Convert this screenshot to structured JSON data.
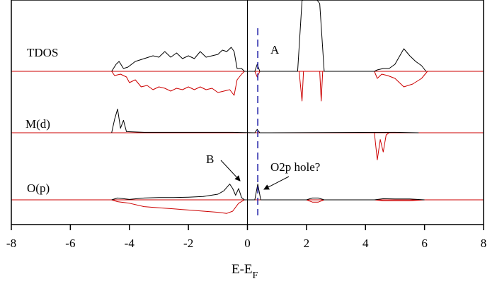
{
  "chart_data": {
    "type": "line",
    "xlabel": "E-E",
    "xlabel_subscript": "F",
    "xlim": [
      -8,
      8
    ],
    "x_ticks": [
      -8,
      -6,
      -4,
      -2,
      0,
      2,
      4,
      6,
      8
    ],
    "grid": false,
    "legend": "none",
    "fermi_level": 0,
    "dashed_marker": 0.35,
    "panels": [
      {
        "name": "TDOS",
        "upper_color": "#000000",
        "lower_color": "#cc0000",
        "upper": [
          [
            -4.6,
            0
          ],
          [
            -4.45,
            0.25
          ],
          [
            -4.35,
            0.35
          ],
          [
            -4.2,
            0.1
          ],
          [
            -4.05,
            0.15
          ],
          [
            -3.8,
            0.35
          ],
          [
            -3.5,
            0.45
          ],
          [
            -3.2,
            0.55
          ],
          [
            -3.0,
            0.5
          ],
          [
            -2.8,
            0.7
          ],
          [
            -2.6,
            0.5
          ],
          [
            -2.4,
            0.65
          ],
          [
            -2.2,
            0.45
          ],
          [
            -2.0,
            0.55
          ],
          [
            -1.8,
            0.45
          ],
          [
            -1.6,
            0.7
          ],
          [
            -1.4,
            0.5
          ],
          [
            -1.2,
            0.55
          ],
          [
            -1.0,
            0.6
          ],
          [
            -0.85,
            0.75
          ],
          [
            -0.7,
            0.7
          ],
          [
            -0.55,
            0.85
          ],
          [
            -0.45,
            0.7
          ],
          [
            -0.35,
            0.1
          ],
          [
            -0.2,
            0.1
          ],
          [
            -0.1,
            0
          ],
          [
            0.25,
            0
          ],
          [
            0.33,
            0.25
          ],
          [
            0.42,
            0
          ],
          [
            1.7,
            0
          ],
          [
            1.85,
            2.5
          ],
          [
            2.0,
            2.6
          ],
          [
            2.3,
            2.6
          ],
          [
            2.45,
            2.4
          ],
          [
            2.6,
            0
          ],
          [
            4.3,
            0
          ],
          [
            4.4,
            0.05
          ],
          [
            4.6,
            0.1
          ],
          [
            4.8,
            0.1
          ],
          [
            5.0,
            0.25
          ],
          [
            5.3,
            0.8
          ],
          [
            5.5,
            0.55
          ],
          [
            5.7,
            0.35
          ],
          [
            5.9,
            0.2
          ],
          [
            6.05,
            0
          ]
        ],
        "lower": [
          [
            -4.6,
            0
          ],
          [
            -4.5,
            -0.15
          ],
          [
            -4.3,
            -0.1
          ],
          [
            -4.1,
            -0.2
          ],
          [
            -4.0,
            -0.4
          ],
          [
            -3.8,
            -0.3
          ],
          [
            -3.6,
            -0.55
          ],
          [
            -3.4,
            -0.5
          ],
          [
            -3.2,
            -0.65
          ],
          [
            -3.0,
            -0.55
          ],
          [
            -2.8,
            -0.6
          ],
          [
            -2.6,
            -0.7
          ],
          [
            -2.4,
            -0.6
          ],
          [
            -2.2,
            -0.65
          ],
          [
            -2.0,
            -0.55
          ],
          [
            -1.8,
            -0.65
          ],
          [
            -1.6,
            -0.55
          ],
          [
            -1.4,
            -0.65
          ],
          [
            -1.2,
            -0.6
          ],
          [
            -1.0,
            -0.75
          ],
          [
            -0.8,
            -0.7
          ],
          [
            -0.6,
            -0.65
          ],
          [
            -0.45,
            -0.85
          ],
          [
            -0.35,
            -0.3
          ],
          [
            -0.2,
            -0.1
          ],
          [
            -0.1,
            0
          ],
          [
            0.25,
            0
          ],
          [
            0.33,
            -0.2
          ],
          [
            0.42,
            0
          ],
          [
            1.75,
            0
          ],
          [
            1.85,
            -1.05
          ],
          [
            1.9,
            0
          ],
          [
            2.45,
            0
          ],
          [
            2.5,
            -1.05
          ],
          [
            2.55,
            0
          ],
          [
            4.3,
            0
          ],
          [
            4.4,
            -0.25
          ],
          [
            4.55,
            -0.1
          ],
          [
            4.75,
            -0.15
          ],
          [
            5.0,
            -0.25
          ],
          [
            5.3,
            -0.55
          ],
          [
            5.6,
            -0.45
          ],
          [
            5.9,
            -0.25
          ],
          [
            6.1,
            0
          ]
        ]
      },
      {
        "name": "M(d)",
        "upper_color": "#000000",
        "lower_color": "#cc0000",
        "upper": [
          [
            -4.6,
            0
          ],
          [
            -4.5,
            0.6
          ],
          [
            -4.4,
            1.05
          ],
          [
            -4.3,
            0.2
          ],
          [
            -4.2,
            0.55
          ],
          [
            -4.1,
            0.05
          ],
          [
            -3.5,
            0.02
          ],
          [
            -2.0,
            0.02
          ],
          [
            -0.5,
            0.02
          ],
          [
            0.25,
            0
          ],
          [
            0.33,
            0.15
          ],
          [
            0.42,
            0
          ],
          [
            5.0,
            0.02
          ],
          [
            5.8,
            0
          ]
        ],
        "upper_color_note": "",
        "lower": [
          [
            -4.6,
            0
          ],
          [
            -0.1,
            0
          ],
          [
            4.3,
            0
          ],
          [
            4.4,
            -1.2
          ],
          [
            4.5,
            -0.3
          ],
          [
            4.6,
            -0.85
          ],
          [
            4.7,
            -0.1
          ],
          [
            4.8,
            0
          ],
          [
            6.0,
            0
          ]
        ]
      },
      {
        "name": "O(p)",
        "upper_color": "#000000",
        "lower_color": "#cc0000",
        "upper": [
          [
            -4.6,
            0
          ],
          [
            -4.4,
            0.08
          ],
          [
            -4.2,
            0.05
          ],
          [
            -4.0,
            0.02
          ],
          [
            -3.5,
            0.08
          ],
          [
            -3.0,
            0.1
          ],
          [
            -2.5,
            0.1
          ],
          [
            -2.0,
            0.12
          ],
          [
            -1.5,
            0.15
          ],
          [
            -1.0,
            0.25
          ],
          [
            -0.8,
            0.4
          ],
          [
            -0.6,
            0.7
          ],
          [
            -0.5,
            0.5
          ],
          [
            -0.4,
            0.2
          ],
          [
            -0.3,
            0.5
          ],
          [
            -0.2,
            0.1
          ],
          [
            -0.1,
            0
          ],
          [
            0.25,
            0
          ],
          [
            0.35,
            0.7
          ],
          [
            0.45,
            0
          ],
          [
            2.0,
            0
          ],
          [
            2.2,
            0.08
          ],
          [
            2.4,
            0.08
          ],
          [
            2.6,
            0
          ],
          [
            4.3,
            0
          ],
          [
            4.6,
            0.05
          ],
          [
            5.0,
            0.04
          ],
          [
            5.5,
            0.04
          ],
          [
            6.0,
            0
          ]
        ],
        "lower": [
          [
            -4.6,
            0
          ],
          [
            -4.4,
            -0.08
          ],
          [
            -4.0,
            -0.15
          ],
          [
            -3.5,
            -0.3
          ],
          [
            -3.0,
            -0.35
          ],
          [
            -2.5,
            -0.4
          ],
          [
            -2.0,
            -0.45
          ],
          [
            -1.5,
            -0.5
          ],
          [
            -1.0,
            -0.55
          ],
          [
            -0.7,
            -0.6
          ],
          [
            -0.5,
            -0.5
          ],
          [
            -0.3,
            -0.15
          ],
          [
            -0.1,
            0
          ],
          [
            2.0,
            0
          ],
          [
            2.2,
            -0.1
          ],
          [
            2.4,
            -0.1
          ],
          [
            2.6,
            0
          ],
          [
            4.3,
            0
          ],
          [
            4.6,
            -0.04
          ],
          [
            5.0,
            -0.04
          ],
          [
            5.5,
            -0.04
          ],
          [
            6.0,
            0
          ]
        ]
      }
    ],
    "annotations": [
      {
        "id": "A",
        "text": "A"
      },
      {
        "id": "B",
        "text": "B"
      },
      {
        "id": "hole",
        "text": "O2p hole?"
      }
    ]
  }
}
